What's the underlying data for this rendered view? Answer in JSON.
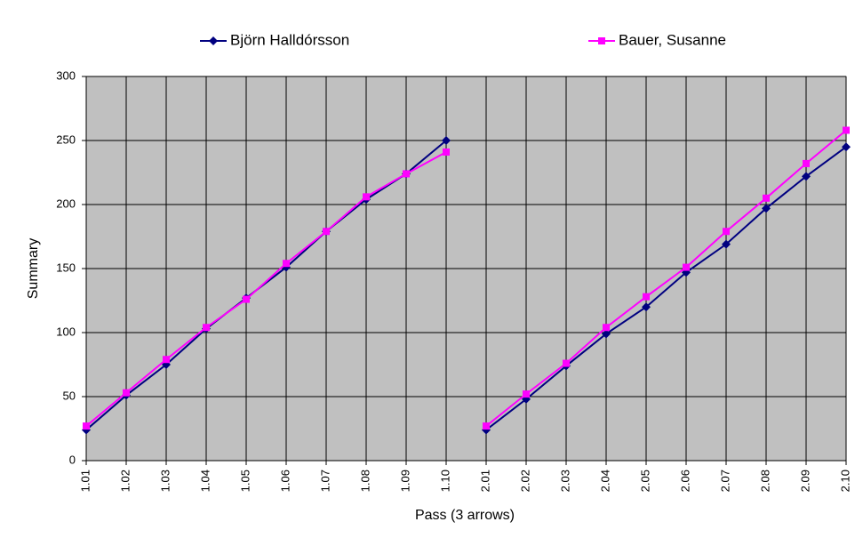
{
  "chart_data": {
    "type": "line",
    "x_label": "Pass (3 arrows)",
    "y_label": "Summary",
    "categories": [
      "1.01",
      "1.02",
      "1.03",
      "1.04",
      "1.05",
      "1.06",
      "1.07",
      "1.08",
      "1.09",
      "1.10",
      "2.01",
      "2.02",
      "2.03",
      "2.04",
      "2.05",
      "2.06",
      "2.07",
      "2.08",
      "2.09",
      "2.10"
    ],
    "series": [
      {
        "name": "Björn Halldórsson",
        "color": "#000080",
        "marker": "diamond",
        "values": [
          24,
          51,
          75,
          103,
          127,
          151,
          179,
          204,
          224,
          250,
          24,
          48,
          74,
          99,
          120,
          147,
          169,
          197,
          222,
          245
        ]
      },
      {
        "name": "Bauer, Susanne",
        "color": "#ff00ff",
        "marker": "square",
        "values": [
          27,
          53,
          79,
          104,
          126,
          154,
          179,
          206,
          224,
          241,
          27,
          52,
          76,
          104,
          128,
          151,
          179,
          205,
          232,
          258
        ]
      }
    ],
    "ylim": [
      0,
      300
    ],
    "yticks": [
      0,
      50,
      100,
      150,
      200,
      250,
      300
    ],
    "grid": true,
    "legend": "top",
    "plot_background": "#c0c0c0"
  }
}
